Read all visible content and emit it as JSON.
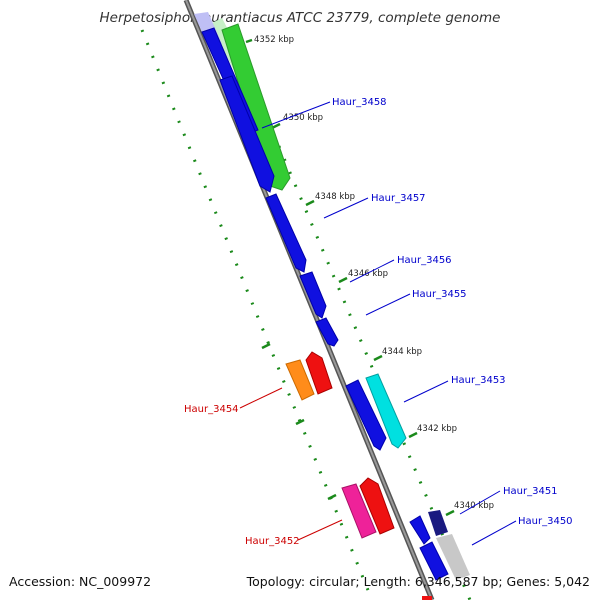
{
  "title": "Herpetosiphon aurantiacus ATCC 23779, complete genome",
  "footer": {
    "accession": "Accession: NC_009972",
    "summary": "Topology: circular; Length: 6,346,587 bp; Genes: 5,042"
  },
  "colors": {
    "backbone": "#888888",
    "tick": "#1b8a1b",
    "label_forward": "#0000cc",
    "label_reverse": "#cc0000"
  },
  "scale_labels": [
    "4352 kbp",
    "4350 kbp",
    "4348 kbp",
    "4346 kbp",
    "4344 kbp",
    "4342 kbp",
    "4340 kbp"
  ],
  "gene_labels": [
    {
      "text": "Haur_3458",
      "strand": "forward"
    },
    {
      "text": "Haur_3457",
      "strand": "forward"
    },
    {
      "text": "Haur_3456",
      "strand": "forward"
    },
    {
      "text": "Haur_3455",
      "strand": "forward"
    },
    {
      "text": "Haur_3453",
      "strand": "forward"
    },
    {
      "text": "Haur_3454",
      "strand": "reverse"
    },
    {
      "text": "Haur_3452",
      "strand": "reverse"
    },
    {
      "text": "Haur_3451",
      "strand": "forward"
    },
    {
      "text": "Haur_3450",
      "strand": "forward"
    }
  ]
}
